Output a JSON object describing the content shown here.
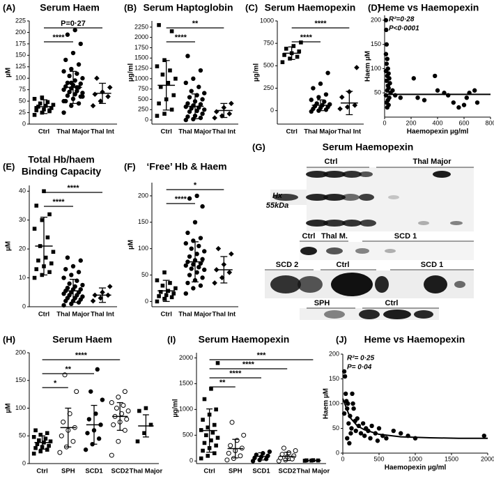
{
  "chart_data": [
    {
      "type": "dotplot",
      "label": "(A)",
      "title": "Serum Haem",
      "ylabel": "µM",
      "ylim": [
        0,
        225
      ],
      "yticks": [
        0,
        25,
        50,
        75,
        100,
        125,
        150,
        175,
        200,
        225
      ],
      "categories": [
        "Ctrl",
        "Thal Major",
        "Thal Int"
      ],
      "markers": [
        "square",
        "circle",
        "diamond"
      ],
      "points": [
        [
          20,
          25,
          28,
          30,
          32,
          35,
          38,
          40,
          42,
          45,
          48,
          55,
          58,
          30,
          35
        ],
        [
          25,
          40,
          45,
          50,
          55,
          60,
          62,
          65,
          68,
          70,
          72,
          75,
          78,
          80,
          82,
          85,
          88,
          90,
          95,
          100,
          105,
          110,
          115,
          120,
          130,
          140,
          155,
          175,
          195,
          205,
          60,
          70,
          80,
          50,
          90
        ],
        [
          40,
          50,
          60,
          65,
          70,
          80,
          100
        ]
      ],
      "means": [
        38,
        80,
        67
      ],
      "sds": [
        15,
        35,
        22
      ],
      "brackets": [
        {
          "from": 0,
          "to": 1,
          "label": "****"
        },
        {
          "from": 0,
          "to": 2,
          "label": "P=0·27"
        }
      ]
    },
    {
      "type": "dotplot",
      "label": "(B)",
      "title": "Serum Haptoglobin",
      "ylabel": "µg/ml",
      "ylim": [
        -100,
        2400
      ],
      "yticks": [
        0,
        250,
        500,
        750,
        1000,
        1250,
        1500,
        1750,
        2000,
        2250
      ],
      "categories": [
        "Ctrl",
        "Thal Major",
        "Thal Int"
      ],
      "markers": [
        "square",
        "circle",
        "diamond"
      ],
      "points": [
        [
          100,
          150,
          250,
          400,
          500,
          600,
          800,
          900,
          1000,
          1100,
          1200,
          1300,
          1450,
          2150,
          2300
        ],
        [
          0,
          20,
          50,
          80,
          100,
          150,
          200,
          220,
          250,
          280,
          300,
          320,
          350,
          380,
          400,
          450,
          500,
          550,
          600,
          650,
          700,
          800,
          900,
          1000,
          1200,
          1550
        ],
        [
          50,
          100,
          150,
          200,
          300,
          400
        ]
      ],
      "means": [
        840,
        330,
        230
      ],
      "sds": [
        600,
        300,
        170
      ],
      "brackets": [
        {
          "from": 0,
          "to": 1,
          "label": "****"
        },
        {
          "from": 0,
          "to": 2,
          "label": "**"
        }
      ]
    },
    {
      "type": "dotplot",
      "label": "(C)",
      "title": "Serum Haemopexin",
      "ylabel": "µg/ml",
      "ylim": [
        -150,
        1000
      ],
      "yticks": [
        0,
        250,
        500,
        750,
        1000
      ],
      "categories": [
        "Ctrl",
        "Thal Major",
        "Thal Int"
      ],
      "markers": [
        "square",
        "circle",
        "diamond"
      ],
      "points": [
        [
          540,
          580,
          600,
          620,
          640,
          660,
          690,
          720,
          760
        ],
        [
          -10,
          0,
          10,
          20,
          30,
          40,
          50,
          60,
          70,
          80,
          100,
          120,
          150,
          180,
          250,
          300,
          420
        ],
        [
          20,
          40,
          60,
          150,
          210,
          480
        ]
      ],
      "means": [
        640,
        60,
        85
      ],
      "sds": [
        70,
        60,
        130
      ],
      "brackets": [
        {
          "from": 0,
          "to": 1,
          "label": "****"
        },
        {
          "from": 0,
          "to": 2,
          "label": "****"
        }
      ]
    },
    {
      "type": "scatter",
      "label": "(D)",
      "title": "Heme vs Haemopexin",
      "xlabel": "Haemopexin µg/ml",
      "ylabel": "Haem µM",
      "xlim": [
        0,
        800
      ],
      "xticks": [
        0,
        200,
        400,
        600,
        800
      ],
      "ylim": [
        0,
        210
      ],
      "yticks": [
        50,
        100,
        150,
        200
      ],
      "annotations": [
        "R²=0·28",
        "P<0·0001"
      ],
      "x": [
        10,
        12,
        15,
        10,
        20,
        15,
        25,
        10,
        30,
        20,
        35,
        15,
        40,
        25,
        30,
        20,
        45,
        10,
        35,
        25,
        15,
        30,
        20,
        60,
        80,
        120,
        220,
        250,
        300,
        380,
        400,
        450,
        480,
        520,
        560,
        600,
        620,
        640,
        680,
        700
      ],
      "y": [
        200,
        180,
        150,
        130,
        120,
        110,
        100,
        95,
        90,
        85,
        80,
        75,
        70,
        65,
        60,
        55,
        50,
        45,
        40,
        35,
        30,
        25,
        20,
        55,
        45,
        40,
        80,
        40,
        35,
        85,
        55,
        50,
        45,
        30,
        20,
        25,
        40,
        50,
        55,
        30
      ],
      "fit": {
        "x": [
          0,
          800
        ],
        "y": [
          47,
          47
        ]
      }
    },
    {
      "type": "dotplot",
      "label": "(E)",
      "title": [
        "Total Hb/haem",
        "Binding Capacity"
      ],
      "ylabel": "µM",
      "ylim": [
        0,
        42
      ],
      "yticks": [
        0,
        10,
        20,
        30,
        40
      ],
      "categories": [
        "Ctrl",
        "Thal Major",
        "Thal Int"
      ],
      "markers": [
        "square",
        "circle",
        "diamond"
      ],
      "points": [
        [
          10,
          11,
          12,
          13,
          14,
          15,
          16,
          17,
          19,
          21,
          24,
          27,
          30,
          32,
          35,
          40
        ],
        [
          0.5,
          1,
          1.5,
          2,
          2,
          2.5,
          3,
          3,
          3.5,
          4,
          4,
          4.5,
          5,
          5,
          5.5,
          6,
          6,
          6.5,
          7,
          7.5,
          8,
          9,
          10,
          11,
          12,
          13,
          14,
          16,
          17
        ],
        [
          2,
          3,
          4,
          4,
          5,
          7
        ]
      ],
      "means": [
        21,
        5.5,
        4
      ],
      "sds": [
        10,
        4,
        2.5
      ],
      "brackets": [
        {
          "from": 0,
          "to": 1,
          "label": "****"
        },
        {
          "from": 0,
          "to": 2,
          "label": "****"
        }
      ]
    },
    {
      "type": "dotplot",
      "label": "(F)",
      "title": "‘Free’ Hb & Haem",
      "ylabel": "µM",
      "ylim": [
        -10,
        225
      ],
      "yticks": [
        0,
        50,
        100,
        150,
        200
      ],
      "categories": [
        "Ctrl",
        "Thal Major",
        "Thal Int"
      ],
      "markers": [
        "square",
        "circle",
        "diamond"
      ],
      "points": [
        [
          0,
          5,
          8,
          10,
          12,
          15,
          18,
          20,
          25,
          30,
          35,
          40,
          55
        ],
        [
          15,
          25,
          30,
          35,
          40,
          45,
          50,
          55,
          60,
          62,
          65,
          68,
          70,
          72,
          75,
          78,
          80,
          85,
          90,
          95,
          100,
          105,
          110,
          115,
          120,
          130,
          150,
          180,
          195,
          200
        ],
        [
          35,
          45,
          55,
          60,
          70,
          90,
          100
        ]
      ],
      "means": [
        20,
        75,
        60
      ],
      "sds": [
        20,
        38,
        25
      ],
      "brackets": [
        {
          "from": 0,
          "to": 1,
          "label": "****"
        },
        {
          "from": 0,
          "to": 2,
          "label": "*"
        }
      ]
    },
    {
      "type": "dotplot",
      "label": "(H)",
      "title": "Serum Haem",
      "ylabel": "µM",
      "ylim": [
        0,
        200
      ],
      "yticks": [
        0,
        50,
        100,
        150,
        200
      ],
      "categories": [
        "Ctrl",
        "SPH",
        "SCD1",
        "SCD2",
        "Thal Major"
      ],
      "markers": [
        "square",
        "circle-open",
        "circle",
        "circle-open",
        "square"
      ],
      "points": [
        [
          18,
          22,
          25,
          28,
          30,
          32,
          35,
          38,
          40,
          42,
          45,
          48,
          52,
          55,
          60
        ],
        [
          20,
          30,
          40,
          50,
          60,
          65,
          75,
          90,
          130,
          160
        ],
        [
          25,
          35,
          45,
          55,
          60,
          70,
          80,
          90,
          115,
          130,
          170
        ],
        [
          15,
          40,
          60,
          70,
          75,
          80,
          85,
          90,
          95,
          100,
          105,
          110,
          120,
          130
        ],
        [
          40,
          55,
          70,
          95,
          100
        ]
      ],
      "means": [
        38,
        65,
        70,
        85,
        68
      ],
      "sds": [
        12,
        35,
        35,
        25,
        20
      ],
      "brackets": [
        {
          "from": 0,
          "to": 1,
          "label": "*"
        },
        {
          "from": 0,
          "to": 2,
          "label": "**"
        },
        {
          "from": 0,
          "to": 3,
          "label": "****"
        }
      ]
    },
    {
      "type": "dotplot",
      "label": "(I)",
      "title": "Serum Haemopexin",
      "ylabel": "µg/ml",
      "ylim": [
        -50,
        2100
      ],
      "yticks": [
        0,
        500,
        1000,
        1500,
        2000
      ],
      "categories": [
        "Ctrl",
        "SPH",
        "SCD1",
        "SCD2",
        "Thal Major"
      ],
      "markers": [
        "square",
        "circle-open",
        "circle",
        "circle-open",
        "square"
      ],
      "points": [
        [
          50,
          100,
          150,
          200,
          250,
          300,
          350,
          400,
          450,
          500,
          550,
          600,
          650,
          700,
          800,
          900,
          1000,
          1200,
          1400,
          1900
        ],
        [
          20,
          50,
          100,
          150,
          200,
          250,
          300,
          400,
          500,
          750
        ],
        [
          0,
          20,
          40,
          60,
          80,
          100,
          120,
          150,
          180
        ],
        [
          0,
          20,
          40,
          60,
          80,
          100,
          130,
          160,
          200,
          250
        ],
        [
          5,
          8,
          10,
          12,
          15
        ]
      ],
      "means": [
        590,
        240,
        90,
        90,
        10
      ],
      "sds": [
        420,
        180,
        70,
        80,
        5
      ],
      "brackets": [
        {
          "from": 0,
          "to": 1,
          "label": "**"
        },
        {
          "from": 0,
          "to": 2,
          "label": "****"
        },
        {
          "from": 0,
          "to": 3,
          "label": "****"
        },
        {
          "from": 0,
          "to": 4,
          "label": "***"
        }
      ]
    },
    {
      "type": "scatter",
      "label": "(J)",
      "title": "Heme vs Haemopexin",
      "xlabel": "Haemopexin µg/ml",
      "ylabel": "Haem µM",
      "xlim": [
        0,
        2000
      ],
      "xticks": [
        0,
        500,
        1000,
        1500,
        2000
      ],
      "ylim": [
        0,
        200
      ],
      "yticks": [
        0,
        50,
        100,
        150,
        200
      ],
      "annotations": [
        "R²= 0·25",
        "P= 0·04"
      ],
      "x": [
        20,
        30,
        40,
        50,
        60,
        20,
        70,
        80,
        100,
        120,
        130,
        150,
        170,
        180,
        200,
        220,
        250,
        280,
        300,
        320,
        350,
        380,
        400,
        450,
        480,
        500,
        550,
        600,
        700,
        800,
        900,
        1000,
        1950,
        60,
        90,
        110,
        140
      ],
      "y": [
        165,
        155,
        120,
        105,
        90,
        80,
        100,
        60,
        75,
        50,
        120,
        90,
        65,
        45,
        70,
        55,
        40,
        60,
        35,
        50,
        45,
        30,
        55,
        40,
        25,
        50,
        35,
        30,
        45,
        40,
        35,
        30,
        35,
        30,
        20,
        40,
        100
      ],
      "fit": {
        "x": [
          0,
          100,
          200,
          300,
          500,
          800,
          1200,
          1600,
          2000
        ],
        "y": [
          110,
          72,
          55,
          47,
          38,
          33,
          31,
          30,
          30
        ]
      }
    }
  ],
  "blot": {
    "label": "(G)",
    "title": "Serum Haemopexin",
    "labels": [
      "Ctrl",
      "Thal Major",
      "Hx",
      "55kDa",
      "Ctrl",
      "Thal M.",
      "SCD 1",
      "SCD 2",
      "Ctrl",
      "SCD 1",
      "SPH",
      "Ctrl"
    ]
  }
}
